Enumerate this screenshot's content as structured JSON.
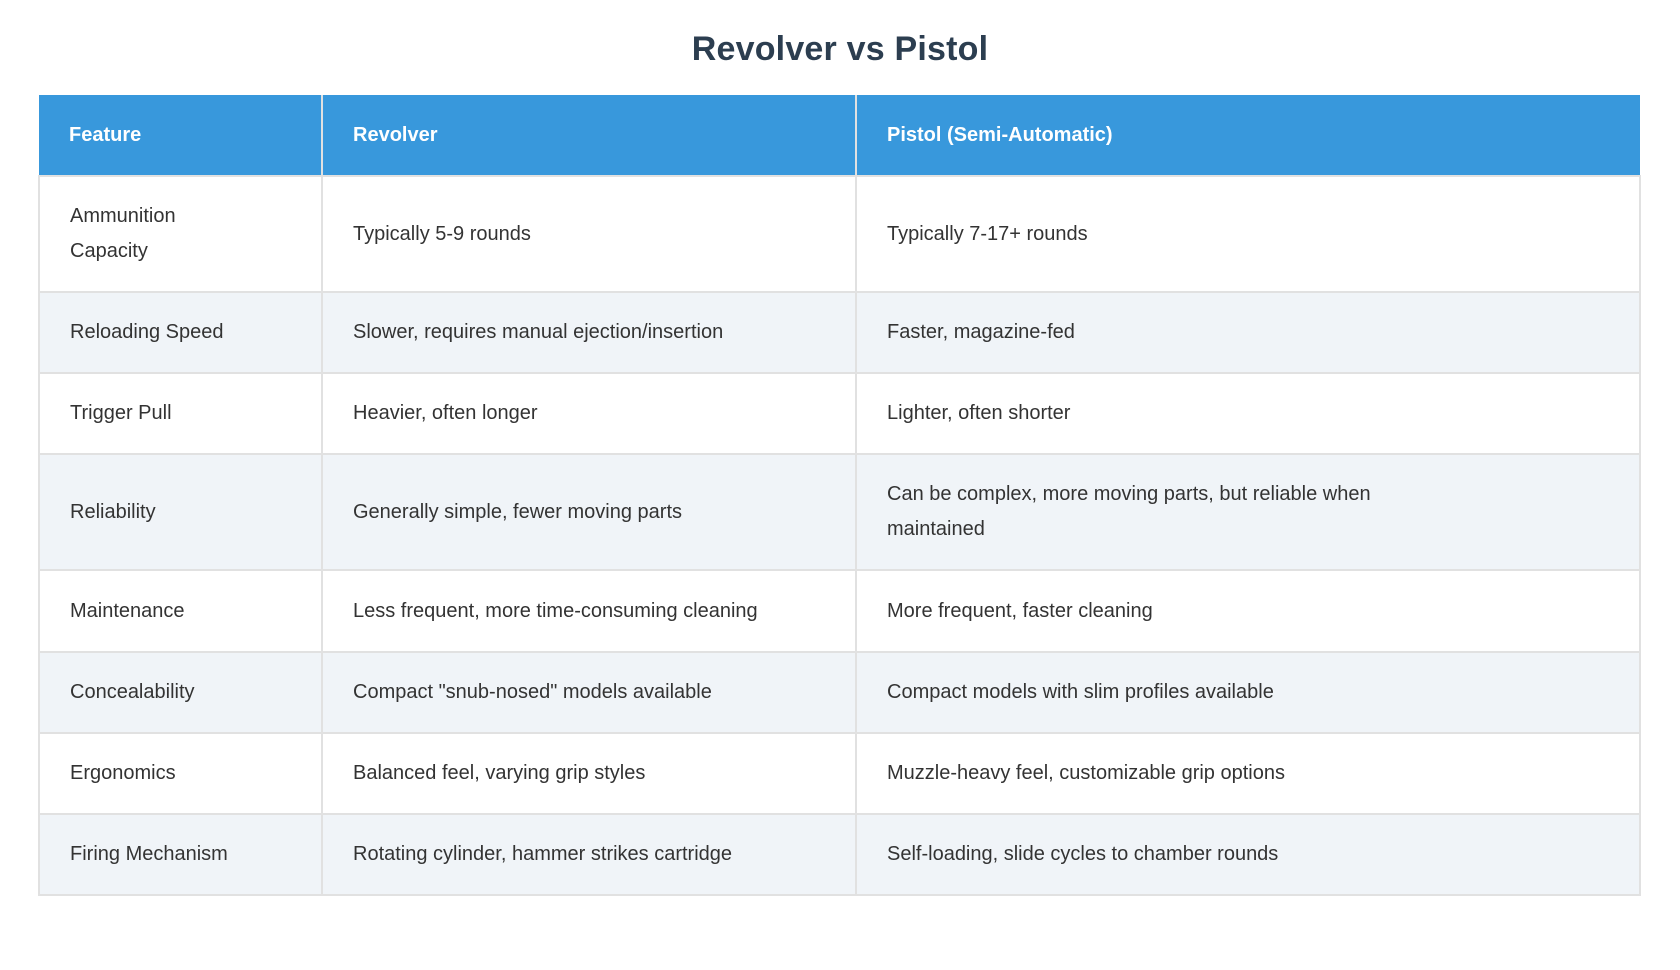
{
  "page": {
    "title": "Revolver vs Pistol"
  },
  "colors": {
    "header_bg": "#3898dc",
    "header_text": "#ffffff",
    "title_text": "#2c3e50",
    "body_text": "#333333",
    "row_alt_bg": "#f0f4f8",
    "row_bg": "#ffffff",
    "border": "#e1e1e1"
  },
  "table": {
    "columns": [
      {
        "label": "Feature"
      },
      {
        "label": "Revolver"
      },
      {
        "label": "Pistol (Semi-Automatic)"
      }
    ],
    "rows": [
      {
        "feature": "Ammunition Capacity",
        "revolver": "Typically 5-9 rounds",
        "pistol": "Typically 7-17+ rounds"
      },
      {
        "feature": "Reloading Speed",
        "revolver": "Slower, requires manual ejection/insertion",
        "pistol": "Faster, magazine-fed"
      },
      {
        "feature": "Trigger Pull",
        "revolver": "Heavier, often longer",
        "pistol": "Lighter, often shorter"
      },
      {
        "feature": "Reliability",
        "revolver": "Generally simple, fewer moving parts",
        "pistol": "Can be complex, more moving parts, but reliable when maintained"
      },
      {
        "feature": "Maintenance",
        "revolver": "Less frequent, more time-consuming cleaning",
        "pistol": "More frequent, faster cleaning"
      },
      {
        "feature": "Concealability",
        "revolver": "Compact \"snub-nosed\" models available",
        "pistol": "Compact models with slim profiles available"
      },
      {
        "feature": "Ergonomics",
        "revolver": "Balanced feel, varying grip styles",
        "pistol": "Muzzle-heavy feel, customizable grip options"
      },
      {
        "feature": "Firing Mechanism",
        "revolver": "Rotating cylinder, hammer strikes cartridge",
        "pistol": "Self-loading, slide cycles to chamber rounds"
      }
    ]
  }
}
